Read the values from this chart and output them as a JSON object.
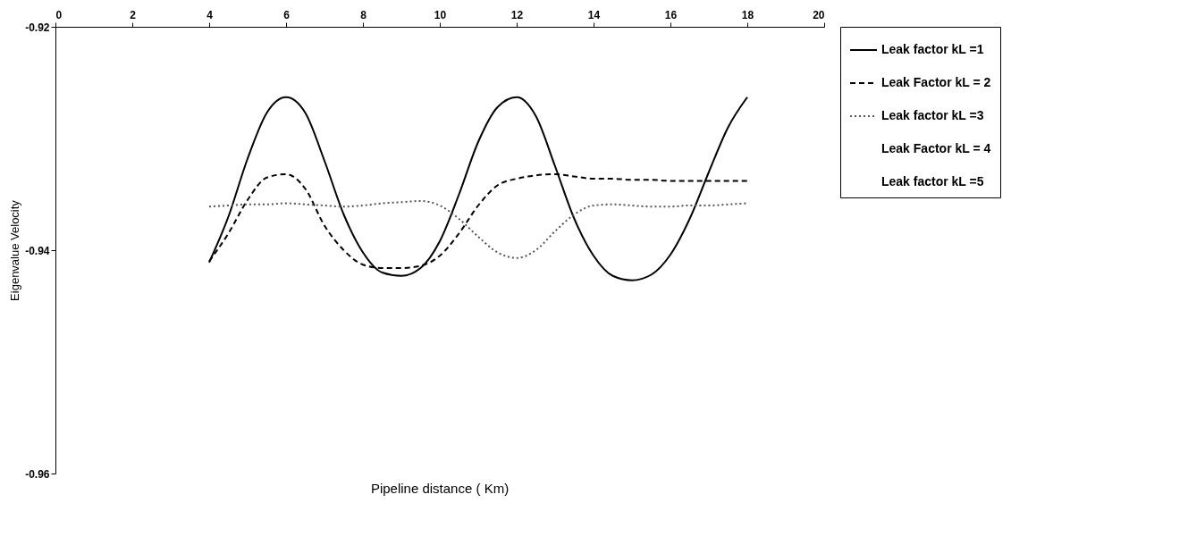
{
  "chart_data": {
    "type": "line",
    "xlabel": "Pipeline distance ( Km)",
    "ylabel": "Eigenvalue  Velocity",
    "x": [
      4,
      4.5,
      5,
      5.5,
      6,
      6.5,
      7,
      7.5,
      8,
      8.5,
      9,
      9.5,
      10,
      10.5,
      11,
      11.5,
      12,
      12.5,
      13,
      13.5,
      14,
      14.5,
      15,
      15.5,
      16,
      16.5,
      17,
      17.5,
      18
    ],
    "series": [
      {
        "name": "Leak factor kL =1",
        "color": "#000000",
        "line_style": "solid",
        "values": [
          -0.9411,
          -0.937,
          -0.9318,
          -0.9277,
          -0.9263,
          -0.9277,
          -0.932,
          -0.9368,
          -0.9402,
          -0.942,
          -0.9423,
          -0.9416,
          -0.9392,
          -0.935,
          -0.9303,
          -0.9272,
          -0.9263,
          -0.928,
          -0.9325,
          -0.9372,
          -0.9405,
          -0.9423,
          -0.9427,
          -0.9422,
          -0.9404,
          -0.9372,
          -0.933,
          -0.929,
          -0.9263
        ]
      },
      {
        "name": "Leak Factor kL = 2",
        "color": "#000000",
        "line_style": "dashed",
        "values": [
          -0.941,
          -0.9385,
          -0.9355,
          -0.9335,
          -0.9332,
          -0.9345,
          -0.9378,
          -0.94,
          -0.9413,
          -0.9416,
          -0.9416,
          -0.9414,
          -0.9405,
          -0.9385,
          -0.936,
          -0.9342,
          -0.9336,
          -0.9333,
          -0.9332,
          -0.9334,
          -0.9336,
          -0.9336,
          -0.9337,
          -0.9337,
          -0.9338,
          -0.9338,
          -0.9338,
          -0.9338,
          -0.9338
        ]
      },
      {
        "name": "Leak factor kL =3",
        "color": "#555555",
        "line_style": "dotted",
        "values": [
          -0.9361,
          -0.936,
          -0.9359,
          -0.9359,
          -0.9358,
          -0.9359,
          -0.936,
          -0.9361,
          -0.936,
          -0.9358,
          -0.9357,
          -0.9356,
          -0.936,
          -0.9372,
          -0.9388,
          -0.9402,
          -0.9407,
          -0.94,
          -0.9383,
          -0.9368,
          -0.936,
          -0.9359,
          -0.936,
          -0.9361,
          -0.9361,
          -0.936,
          -0.936,
          -0.9359,
          -0.9358
        ]
      },
      {
        "name": "Leak Factor kL = 4",
        "values": [
          null,
          null,
          null,
          null,
          null,
          null,
          null,
          null,
          null,
          null,
          null,
          null,
          null,
          null,
          null,
          null,
          null,
          null,
          null,
          null,
          null,
          null,
          null,
          null,
          null,
          null,
          null,
          null,
          null
        ]
      },
      {
        "name": "Leak factor kL =5",
        "values": [
          null,
          null,
          null,
          null,
          null,
          null,
          null,
          null,
          null,
          null,
          null,
          null,
          null,
          null,
          null,
          null,
          null,
          null,
          null,
          null,
          null,
          null,
          null,
          null,
          null,
          null,
          null,
          null,
          null
        ]
      }
    ],
    "xlim": [
      0,
      20
    ],
    "xticks": [
      0,
      2,
      4,
      6,
      8,
      10,
      12,
      14,
      16,
      18,
      20
    ],
    "ylim": [
      -0.96,
      -0.92
    ],
    "yticks": [
      -0.96,
      -0.94,
      -0.92
    ],
    "grid": false,
    "legend": "top right"
  }
}
